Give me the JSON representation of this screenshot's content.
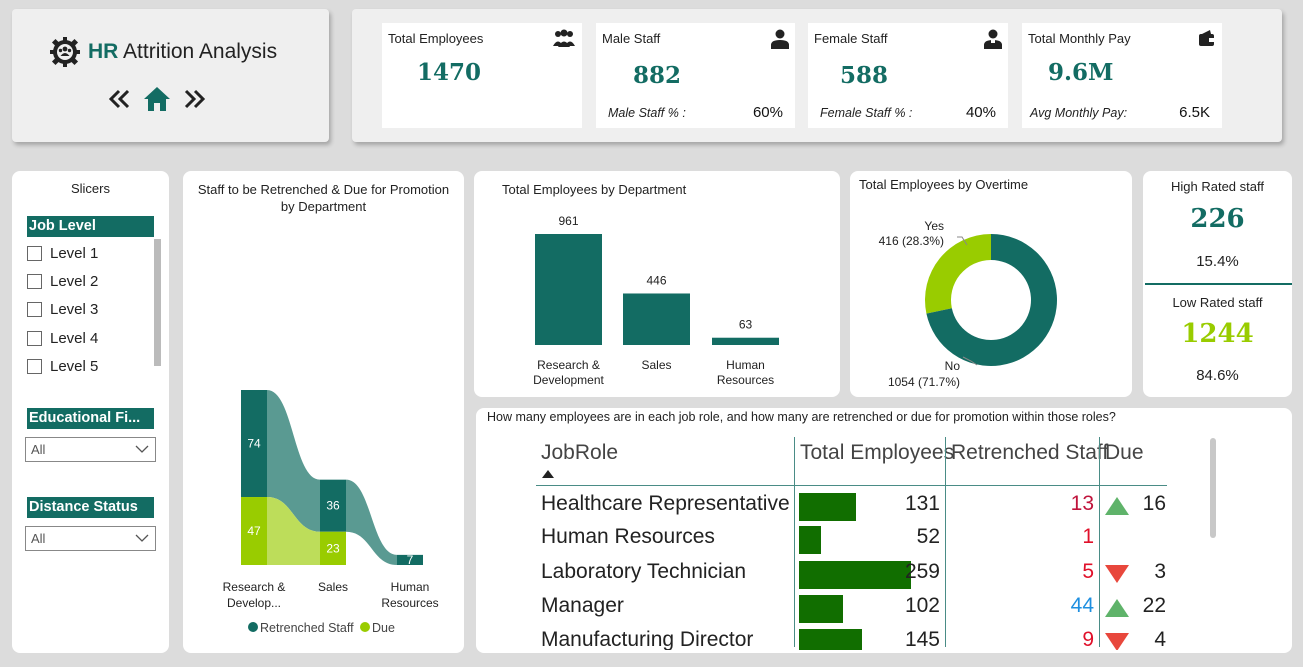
{
  "header": {
    "title_prefix": "HR",
    "title_rest": " Attrition Analysis",
    "icons": [
      "team-gear-icon",
      "prev-page-icon",
      "home-icon",
      "next-page-icon"
    ]
  },
  "kpis": {
    "total_employees": {
      "label": "Total Employees",
      "value": "1470",
      "icon": "group-icon"
    },
    "male_staff": {
      "label": "Male Staff",
      "value": "882",
      "sub_label": "Male Staff % :",
      "sub_value": "60%",
      "icon": "male-person-icon"
    },
    "female_staff": {
      "label": "Female Staff",
      "value": "588",
      "sub_label": "Female Staff % :",
      "sub_value": "40%",
      "icon": "female-person-icon"
    },
    "monthly_pay": {
      "label": "Total Monthly Pay",
      "value": "9.6M",
      "sub_label": "Avg Monthly Pay:",
      "sub_value": "6.5K",
      "icon": "wallet-icon"
    }
  },
  "slicers": {
    "title": "Slicers",
    "job_level": {
      "header": "Job Level",
      "items": [
        "Level 1",
        "Level 2",
        "Level 3",
        "Level 4",
        "Level 5"
      ]
    },
    "education": {
      "header": "Educational Fi...",
      "selected": "All"
    },
    "distance": {
      "header": "Distance Status",
      "selected": "All"
    }
  },
  "ribbon": {
    "title_line1": "Staff to be Retrenched & Due for Promotion",
    "title_line2": "by Department",
    "legend": {
      "retrenched": "Retrenched Staff",
      "due": "Due"
    },
    "categories": [
      {
        "label_line1": "Research &",
        "label_line2": "Develop...",
        "retrenched": 74,
        "due": 47
      },
      {
        "label_line1": "Sales",
        "label_line2": "",
        "retrenched": 36,
        "due": 23
      },
      {
        "label_line1": "Human",
        "label_line2": "Resources",
        "retrenched": 7,
        "due": null
      }
    ],
    "colors": {
      "retrenched": "#136c63",
      "due": "#99cc00"
    }
  },
  "dept_chart": {
    "title": "Total Employees by Department",
    "bars": [
      {
        "label_line1": "Research &",
        "label_line2": "Development",
        "value": 961
      },
      {
        "label_line1": "Sales",
        "label_line2": "",
        "value": 446
      },
      {
        "label_line1": "Human",
        "label_line2": "Resources",
        "value": 63
      }
    ],
    "color": "#136c63"
  },
  "overtime": {
    "title": "Total Employees by Overtime",
    "slices": [
      {
        "name": "Yes",
        "value": 416,
        "label": "416 (28.3%)",
        "color": "#99cc00"
      },
      {
        "name": "No",
        "value": 1054,
        "label": "1054 (71.7%)",
        "color": "#136c63"
      }
    ]
  },
  "rated": {
    "high": {
      "label": "High Rated staff",
      "value": "226",
      "pct": "15.4%"
    },
    "low": {
      "label": "Low Rated staff",
      "value": "1244",
      "pct": "84.6%"
    }
  },
  "job_table": {
    "question": "How many employees are in each job role, and how many are retrenched or due for promotion within those roles?",
    "columns": [
      "JobRole",
      "Total Employees",
      "Retrenched Staff",
      "Due"
    ],
    "rows": [
      {
        "role": "Healthcare Representative",
        "total": 131,
        "retrenched": "13",
        "retrenched_color": "#c0143c",
        "due": "16",
        "due_dir": "up"
      },
      {
        "role": "Human Resources",
        "total": 52,
        "retrenched": "1",
        "retrenched_color": "#e0102a",
        "due": "",
        "due_dir": ""
      },
      {
        "role": "Laboratory Technician",
        "total": 259,
        "retrenched": "5",
        "retrenched_color": "#e0102a",
        "due": "3",
        "due_dir": "down"
      },
      {
        "role": "Manager",
        "total": 102,
        "retrenched": "44",
        "retrenched_color": "#1e8fe0",
        "due": "22",
        "due_dir": "up"
      },
      {
        "role": "Manufacturing Director",
        "total": 145,
        "retrenched": "9",
        "retrenched_color": "#e0102a",
        "due": "4",
        "due_dir": "down"
      }
    ],
    "bar_color": "#116e00",
    "bar_max": 259
  }
}
